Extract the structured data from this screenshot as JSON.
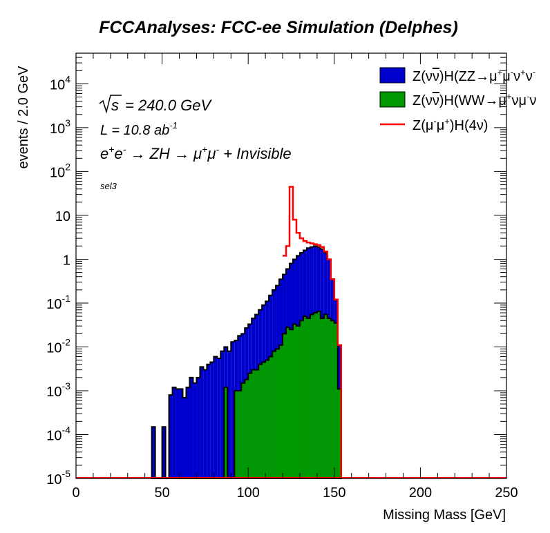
{
  "chart_data": {
    "type": "histogram-stacked-log",
    "title": "FCCAnalyses: FCC-ee Simulation (Delphes)",
    "xlabel": "Missing Mass [GeV]",
    "ylabel": "events / 2.0 GeV",
    "xlim": [
      0,
      250
    ],
    "ylim": [
      1e-05,
      50000
    ],
    "log_y": true,
    "bin_width": 2.0,
    "x_ticks": [
      "0",
      "50",
      "100",
      "150",
      "200",
      "250"
    ],
    "y_ticks": [
      {
        "base": "10",
        "exp": "-5"
      },
      {
        "base": "10",
        "exp": "-4"
      },
      {
        "base": "10",
        "exp": "-3"
      },
      {
        "base": "10",
        "exp": "-2"
      },
      {
        "base": "10",
        "exp": "-1"
      },
      {
        "base": "1",
        "exp": ""
      },
      {
        "base": "10",
        "exp": ""
      },
      {
        "base": "10",
        "exp": "2"
      },
      {
        "base": "10",
        "exp": "3"
      },
      {
        "base": "10",
        "exp": "4"
      }
    ],
    "annotations": {
      "sqrt_s": "= 240.0 GeV",
      "lumi": "L = 10.8 ab",
      "lumi_exp": "-1",
      "process": "e+e- → ZH → μ+μ- + Invisible",
      "selection": "sel3"
    },
    "legend_position": "top-right",
    "series": [
      {
        "name": "Z(νν̄)H(ZZ→μ+μ-ν+ν-)",
        "style": "filled",
        "color": "#0000cc",
        "edge": "#000000",
        "bins": [
          [
            44,
            0.00015
          ],
          [
            50,
            0.00015
          ],
          [
            54,
            0.0008
          ],
          [
            56,
            0.0012
          ],
          [
            58,
            0.0011
          ],
          [
            60,
            0.0011
          ],
          [
            62,
            0.0007
          ],
          [
            64,
            0.0012
          ],
          [
            66,
            0.002
          ],
          [
            68,
            0.0015
          ],
          [
            70,
            0.002
          ],
          [
            72,
            0.0035
          ],
          [
            74,
            0.003
          ],
          [
            76,
            0.004
          ],
          [
            78,
            0.0045
          ],
          [
            80,
            0.006
          ],
          [
            82,
            0.0055
          ],
          [
            84,
            0.008
          ],
          [
            86,
            0.01
          ],
          [
            88,
            0.008
          ],
          [
            90,
            0.013
          ],
          [
            92,
            0.014
          ],
          [
            94,
            0.018
          ],
          [
            96,
            0.02
          ],
          [
            98,
            0.027
          ],
          [
            100,
            0.033
          ],
          [
            102,
            0.045
          ],
          [
            104,
            0.055
          ],
          [
            106,
            0.07
          ],
          [
            108,
            0.09
          ],
          [
            110,
            0.11
          ],
          [
            112,
            0.15
          ],
          [
            114,
            0.2
          ],
          [
            116,
            0.25
          ],
          [
            118,
            0.35
          ],
          [
            120,
            0.45
          ],
          [
            122,
            0.6
          ],
          [
            124,
            0.8
          ],
          [
            126,
            1.0
          ],
          [
            128,
            1.2
          ],
          [
            130,
            1.4
          ],
          [
            132,
            1.6
          ],
          [
            134,
            1.8
          ],
          [
            136,
            1.9
          ],
          [
            138,
            2.0
          ],
          [
            140,
            1.9
          ],
          [
            142,
            1.7
          ],
          [
            144,
            1.4
          ],
          [
            146,
            1.0
          ],
          [
            148,
            0.35
          ],
          [
            150,
            0.12
          ],
          [
            152,
            0.011
          ]
        ]
      },
      {
        "name": "Z(νν̄)H(WW→μ+νμ-ν)",
        "style": "filled",
        "color": "#009900",
        "edge": "#000000",
        "bins": [
          [
            86,
            0.0012
          ],
          [
            92,
            0.001
          ],
          [
            94,
            0.001
          ],
          [
            96,
            0.0015
          ],
          [
            98,
            0.0018
          ],
          [
            100,
            0.0025
          ],
          [
            102,
            0.003
          ],
          [
            104,
            0.003
          ],
          [
            106,
            0.004
          ],
          [
            108,
            0.0045
          ],
          [
            110,
            0.005
          ],
          [
            112,
            0.006
          ],
          [
            114,
            0.008
          ],
          [
            116,
            0.009
          ],
          [
            118,
            0.011
          ],
          [
            120,
            0.02
          ],
          [
            122,
            0.028
          ],
          [
            124,
            0.025
          ],
          [
            126,
            0.033
          ],
          [
            128,
            0.03
          ],
          [
            130,
            0.04
          ],
          [
            132,
            0.05
          ],
          [
            134,
            0.045
          ],
          [
            136,
            0.055
          ],
          [
            138,
            0.06
          ],
          [
            140,
            0.065
          ],
          [
            142,
            0.045
          ],
          [
            144,
            0.055
          ],
          [
            146,
            0.045
          ],
          [
            148,
            0.04
          ],
          [
            150,
            0.035
          ],
          [
            152,
            0.0011
          ]
        ]
      },
      {
        "name": "Z(μ-μ+)H(4ν)",
        "style": "line",
        "color": "#ff0000",
        "bins": [
          [
            120,
            1.2
          ],
          [
            122,
            2.0
          ],
          [
            124,
            45.0
          ],
          [
            126,
            8.0
          ],
          [
            128,
            4.0
          ],
          [
            130,
            3.0
          ],
          [
            132,
            2.6
          ],
          [
            134,
            2.4
          ],
          [
            136,
            2.3
          ],
          [
            138,
            2.2
          ],
          [
            140,
            2.1
          ],
          [
            142,
            1.9
          ],
          [
            144,
            1.5
          ],
          [
            146,
            1.0
          ],
          [
            148,
            0.35
          ],
          [
            150,
            0.12
          ],
          [
            152,
            0.011
          ]
        ]
      }
    ]
  }
}
